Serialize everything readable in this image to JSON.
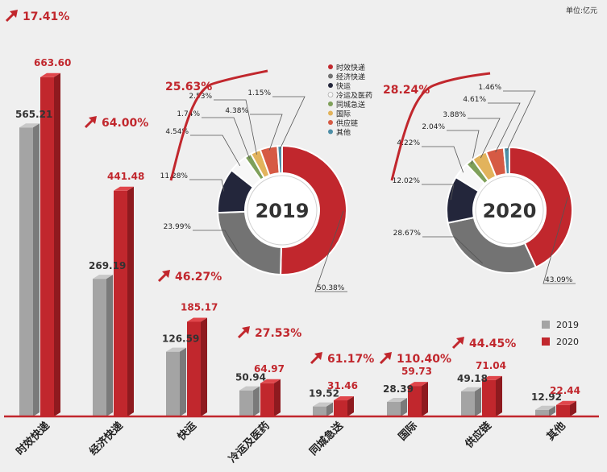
{
  "unit_label": "单位:亿元",
  "chart_data": [
    {
      "type": "bar",
      "categories": [
        "时效快递",
        "经济快递",
        "快运",
        "冷运及医药",
        "同城急送",
        "国际",
        "供应链",
        "其他"
      ],
      "series": [
        {
          "name": "2019",
          "values": [
            565.21,
            269.19,
            126.59,
            50.94,
            19.52,
            28.39,
            49.18,
            12.92
          ],
          "labels": [
            "565.21",
            "269.19",
            "126.59",
            "50.94",
            "19.52",
            "28.39",
            "49.18",
            "12.92"
          ]
        },
        {
          "name": "2020",
          "values": [
            663.6,
            441.48,
            185.17,
            64.97,
            31.46,
            59.73,
            71.04,
            22.44
          ],
          "labels": [
            "663.60",
            "441.48",
            "185.17",
            "64.97",
            "31.46",
            "59.73",
            "71.04",
            "22.44"
          ]
        }
      ],
      "growth": [
        "17.41%",
        "64.00%",
        "46.27%",
        "27.53%",
        "61.17%",
        "110.40%",
        "44.45%"
      ],
      "ylim": [
        0,
        720
      ],
      "legend_position": "bottom-right"
    },
    {
      "type": "pie",
      "title": "2019",
      "growth_label": "25.63%",
      "labels": [
        "时效快递",
        "经济快递",
        "快运",
        "冷运及医药",
        "同城急送",
        "国际",
        "供应链",
        "其他"
      ],
      "values": [
        50.38,
        23.99,
        11.28,
        4.54,
        1.74,
        2.53,
        4.38,
        1.15
      ],
      "value_labels": [
        "50.38%",
        "23.99%",
        "11.28%",
        "4.54%",
        "1.74%",
        "2.53%",
        "4.38%",
        "1.15%"
      ]
    },
    {
      "type": "pie",
      "title": "2020",
      "growth_label": "28.24%",
      "labels": [
        "时效快递",
        "经济快递",
        "快运",
        "冷运及医药",
        "同城急送",
        "国际",
        "供应链",
        "其他"
      ],
      "values": [
        43.09,
        28.67,
        12.02,
        4.22,
        2.04,
        3.88,
        4.61,
        1.46
      ],
      "value_labels": [
        "43.09%",
        "28.67%",
        "12.02%",
        "4.22%",
        "2.04%",
        "3.88%",
        "4.61%",
        "1.46%"
      ]
    }
  ],
  "pie_legend": [
    "时效快递",
    "经济快递",
    "快运",
    "冷运及医药",
    "同城急送",
    "国际",
    "供应链",
    "其他"
  ],
  "colors": {
    "red": "#c1272d",
    "red_dark": "#8e1a1f",
    "red_top": "#e0464b",
    "grey": "#a4a4a4",
    "grey_dark": "#7a7a7a",
    "grey_top": "#c8c8c8",
    "segments": [
      "#c1272d",
      "#737373",
      "#23263b",
      "#f7f7f7",
      "#7fa05a",
      "#e2b35c",
      "#d65a44",
      "#4d8ea6"
    ]
  }
}
